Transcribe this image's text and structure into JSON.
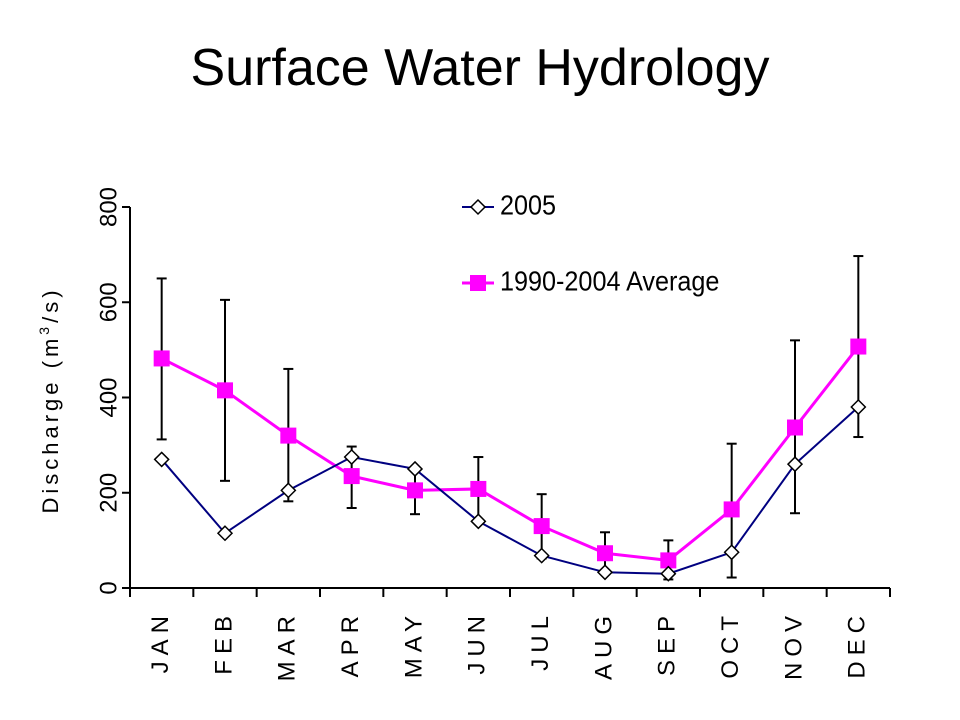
{
  "title": "Surface Water Hydrology",
  "chart_data": {
    "type": "line",
    "categories": [
      "JAN",
      "FEB",
      "MAR",
      "APR",
      "MAY",
      "JUN",
      "JUL",
      "AUG",
      "SEP",
      "OCT",
      "NOV",
      "DEC"
    ],
    "ylabel_main": "Discharge (m",
    "ylabel_sup": "3",
    "ylabel_tail": "/s)",
    "ylim": [
      0,
      800
    ],
    "yticks": [
      "0",
      "200",
      "400",
      "600",
      "800"
    ],
    "legend_position": "top",
    "series": [
      {
        "name": "2005",
        "color": "#000080",
        "marker": "diamond-open",
        "values": [
          270,
          115,
          205,
          275,
          250,
          140,
          68,
          33,
          30,
          75,
          260,
          380
        ]
      },
      {
        "name": "1990-2004 Average",
        "color": "#FF00FF",
        "marker": "square-filled",
        "values": [
          482,
          415,
          320,
          235,
          205,
          208,
          130,
          73,
          58,
          165,
          337,
          507
        ],
        "error_low": [
          312,
          225,
          182,
          168,
          155,
          140,
          62,
          35,
          18,
          22,
          157,
          317
        ],
        "error_high": [
          650,
          605,
          460,
          297,
          250,
          275,
          197,
          117,
          100,
          303,
          520,
          697
        ]
      }
    ]
  }
}
